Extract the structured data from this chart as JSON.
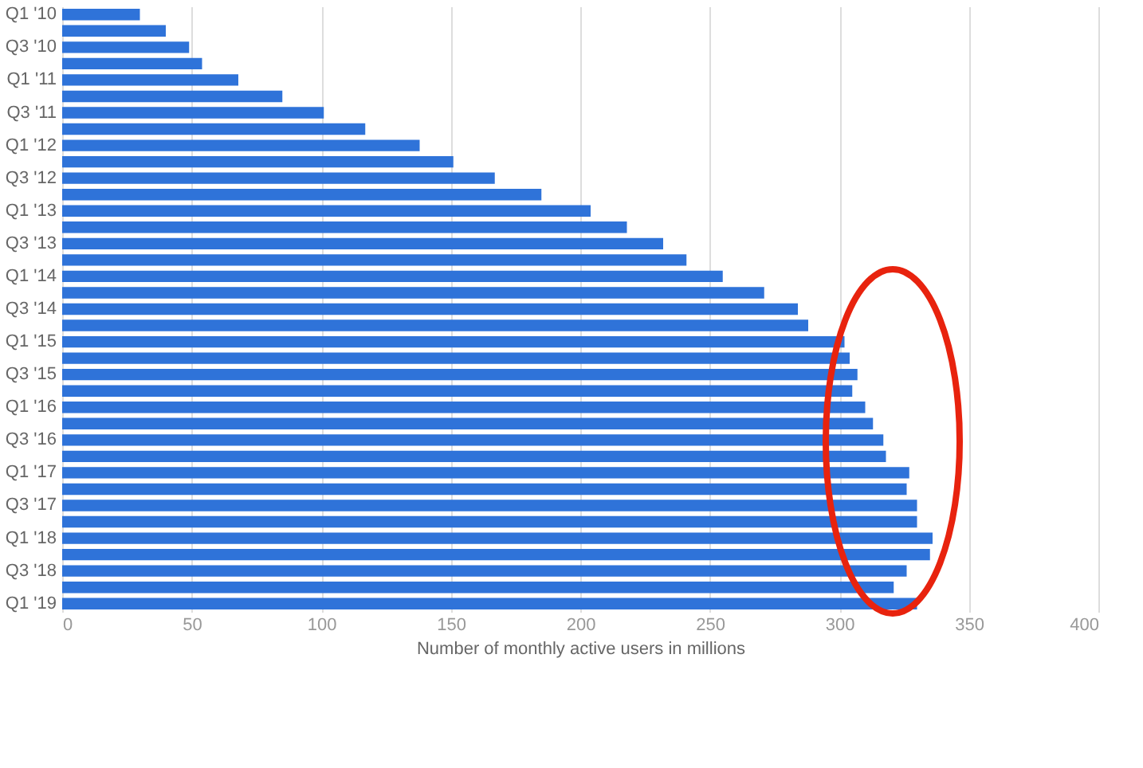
{
  "chart_data": {
    "type": "bar",
    "orientation": "horizontal",
    "xlabel": "Number of monthly active users in millions",
    "categories": [
      "Q1 '10",
      null,
      "Q3 '10",
      null,
      "Q1 '11",
      null,
      "Q3 '11",
      null,
      "Q1 '12",
      null,
      "Q3 '12",
      null,
      "Q1 '13",
      null,
      "Q3 '13",
      null,
      "Q1 '14",
      null,
      "Q3 '14",
      null,
      "Q1 '15",
      null,
      "Q3 '15",
      null,
      "Q1 '16",
      null,
      "Q3 '16",
      null,
      "Q1 '17",
      null,
      "Q3 '17",
      null,
      "Q1 '18",
      null,
      "Q3 '18",
      null,
      "Q1 '19"
    ],
    "values": [
      30,
      40,
      49,
      54,
      68,
      85,
      101,
      117,
      138,
      151,
      167,
      185,
      204,
      218,
      232,
      241,
      255,
      271,
      284,
      288,
      302,
      304,
      307,
      305,
      310,
      313,
      317,
      318,
      327,
      326,
      330,
      330,
      336,
      335,
      326,
      321,
      330
    ],
    "color": "#2f73d9",
    "xlim": [
      0,
      400
    ],
    "xticks": [
      0,
      50,
      100,
      150,
      200,
      250,
      300,
      350,
      400
    ],
    "grid": "x"
  }
}
